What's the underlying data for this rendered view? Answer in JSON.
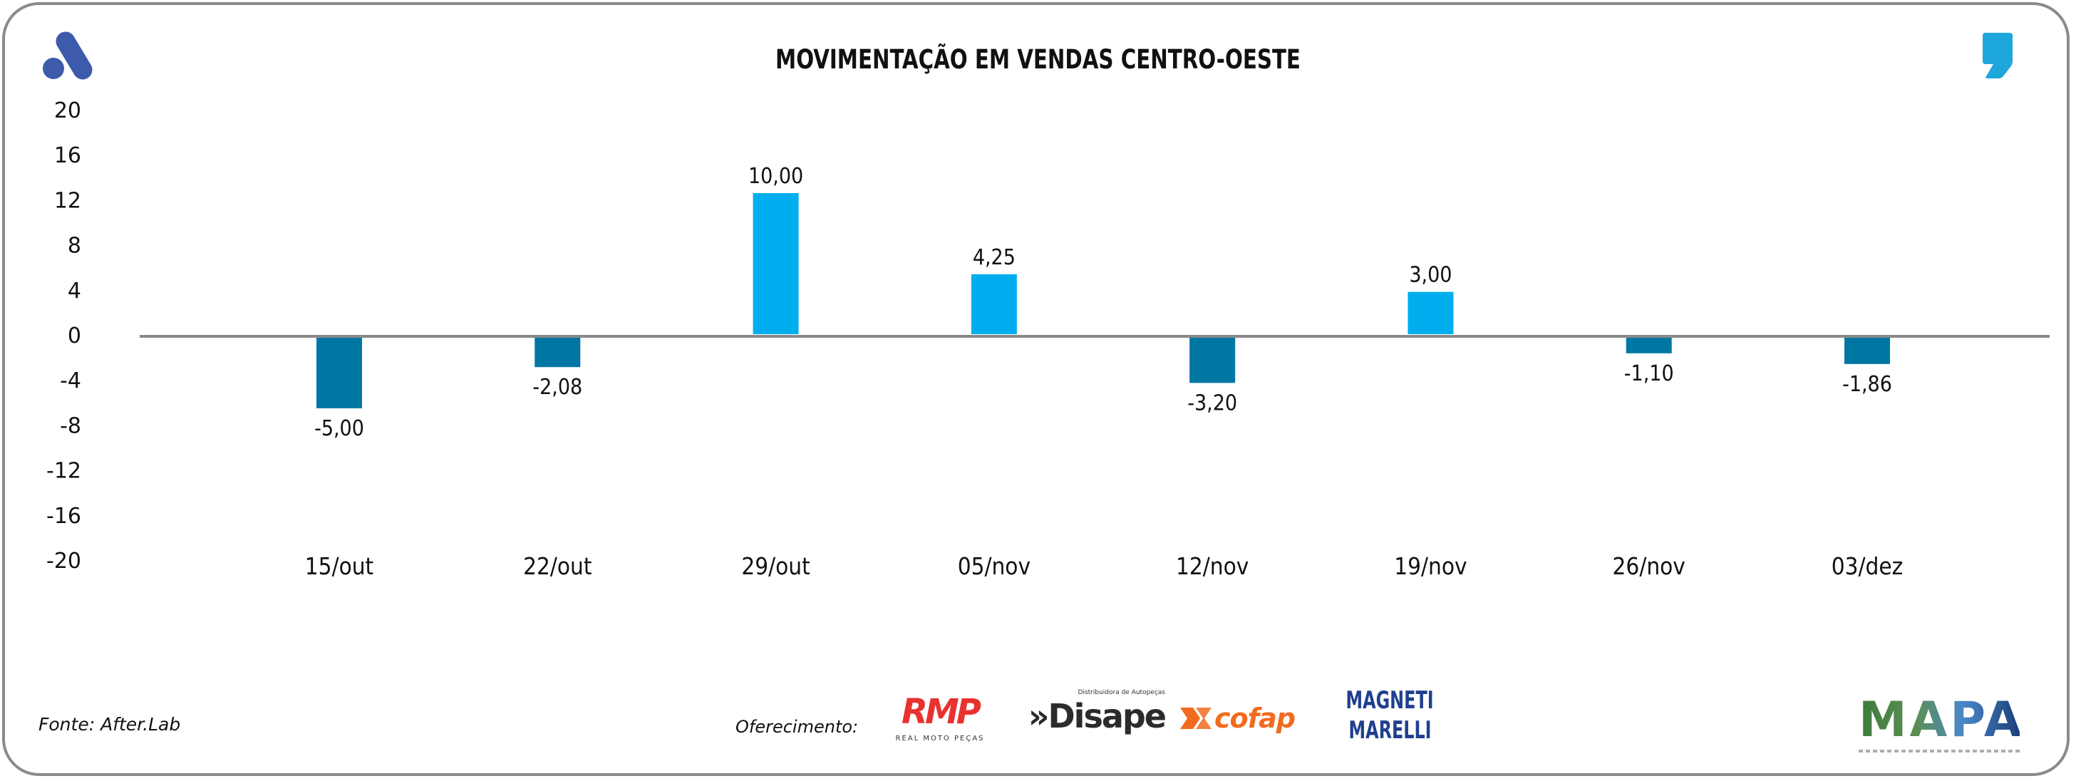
{
  "header": {
    "title": "MOVIMENTAÇÃO EM VENDAS CENTRO-OESTE",
    "left_logo_icon": "afterlab-a-logo-icon",
    "right_logo_icon": "comma-quote-logo-icon"
  },
  "colors": {
    "positive_bar": "#00AEEF",
    "negative_bar": "#0077A3",
    "zero_line": "#8a8a8a",
    "frame_border": "#8a8a8a",
    "logo_blue": "#3D5BAA",
    "comma_blue": "#1EA7DB"
  },
  "chart_data": {
    "type": "bar",
    "title": "MOVIMENTAÇÃO EM VENDAS CENTRO-OESTE",
    "xlabel": "",
    "ylabel": "",
    "categories": [
      "15/out",
      "22/out",
      "29/out",
      "05/nov",
      "12/nov",
      "19/nov",
      "26/nov",
      "03/dez"
    ],
    "values": [
      -5.0,
      -2.08,
      10.0,
      4.25,
      -3.2,
      3.0,
      -1.1,
      -1.86
    ],
    "value_labels": [
      "-5,00",
      "-2,08",
      "10,00",
      "4,25",
      "-3,20",
      "3,00",
      "-1,10",
      "-1,86"
    ],
    "ylim": [
      -20,
      20
    ],
    "yticks": [
      20,
      16,
      12,
      8,
      4,
      0,
      -4,
      -8,
      -12,
      -16,
      -20
    ],
    "grid": false,
    "legend": "none"
  },
  "footer": {
    "source": "Fonte: After.Lab",
    "sponsor_label": "Oferecimento:",
    "sponsors": {
      "rmp": {
        "mark": "RMP",
        "sub": "REAL MOTO PEÇAS"
      },
      "disape": {
        "mark": "»Disape",
        "sub": "Distribuidora de Autopeças"
      },
      "cofap": {
        "mark": "cofap"
      },
      "magneti": {
        "line1": "MAGNETI",
        "line2": "MARELLI"
      }
    },
    "mapa": {
      "mark": "MAPA"
    }
  }
}
